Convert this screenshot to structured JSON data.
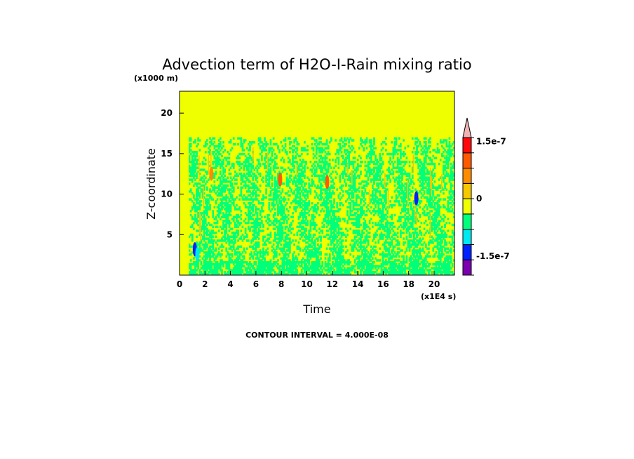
{
  "chart_data": {
    "type": "heatmap",
    "title": "Advection term of H2O-I-Rain mixing ratio",
    "xlabel": "Time",
    "ylabel": "Z-coordinate",
    "x_multiplier_label": "(x1E4 s)",
    "y_multiplier_label": "(x1000 m)",
    "xlim": [
      0,
      21.6
    ],
    "ylim": [
      0,
      22.7
    ],
    "x_ticks": [
      "0",
      "2",
      "4",
      "6",
      "8",
      "10",
      "12",
      "14",
      "16",
      "18",
      "20"
    ],
    "y_ticks": [
      "5",
      "10",
      "15",
      "20"
    ],
    "x_tick_values": [
      0,
      2,
      4,
      6,
      8,
      10,
      12,
      14,
      16,
      18,
      20
    ],
    "y_tick_values": [
      5,
      10,
      15,
      20
    ],
    "contour_interval_text": "CONTOUR INTERVAL = 4.000E-08",
    "colorbar": {
      "levels": [
        -2e-07,
        -1.6e-07,
        -1.2e-07,
        -8e-08,
        -4e-08,
        0,
        4e-08,
        8e-08,
        1.2e-07,
        1.6e-07,
        2e-07
      ],
      "colors": [
        "#7a00b0",
        "#0022ff",
        "#00e8f0",
        "#00ff7a",
        "#f0ff00",
        "#f5c800",
        "#ff8c00",
        "#ff5a00",
        "#ff0a0a",
        "#f0b4b4"
      ],
      "labels": [
        "1.5e-7",
        "0",
        "-1.5e-7"
      ],
      "label_values": [
        1.5e-07,
        0,
        -1.5e-07
      ]
    },
    "regions": {
      "background_above_z_km": 17,
      "background_color": "#f0ff00",
      "activity_layer_z_km": [
        0,
        17
      ],
      "activity_start_time": 0.7,
      "dominant_colors": [
        "#00ff7a",
        "#f0ff00"
      ],
      "extrema": [
        {
          "time": 1.2,
          "z": 3.2,
          "color": "#0022ff"
        },
        {
          "time": 1.4,
          "z": 2.6,
          "color": "#00e8f0"
        },
        {
          "time": 11.6,
          "z": 11.5,
          "color": "#ff5a00"
        },
        {
          "time": 7.9,
          "z": 11.8,
          "color": "#ff5a00"
        },
        {
          "time": 2.5,
          "z": 12.5,
          "color": "#ff8c00"
        },
        {
          "time": 18.6,
          "z": 9.5,
          "color": "#0022ff"
        }
      ]
    }
  }
}
